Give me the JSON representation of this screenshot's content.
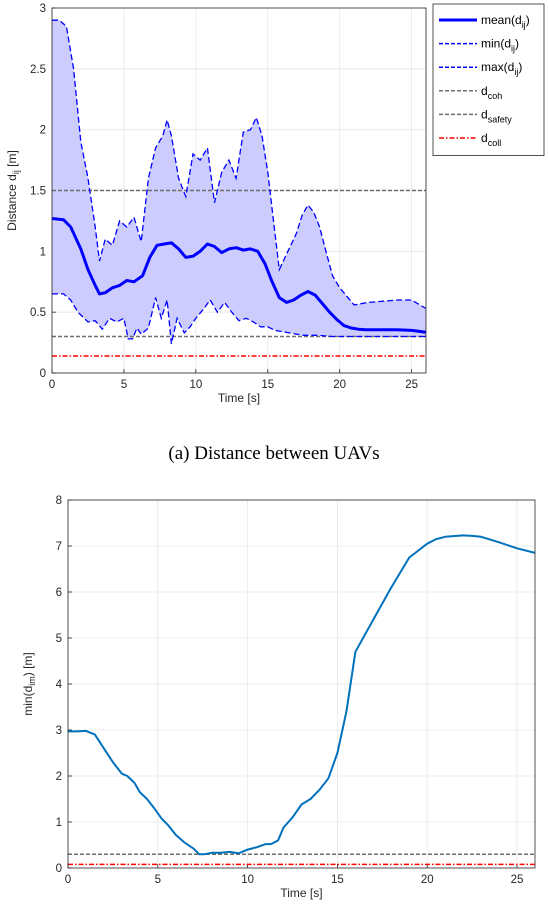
{
  "chart_data": [
    {
      "type": "line",
      "caption": "(a) Distance between UAVs",
      "xlabel": "Time [s]",
      "ylabel": {
        "main": "Distance d",
        "sub": "ij",
        "unit": " [m]"
      },
      "xlim": [
        0,
        26
      ],
      "ylim": [
        0,
        3
      ],
      "xticks": [
        "0",
        "5",
        "10",
        "15",
        "20",
        "25"
      ],
      "yticks": [
        "0",
        "0.5",
        "1",
        "1.5",
        "2",
        "2.5",
        "3"
      ],
      "grid": true,
      "legend_position": "top-right",
      "colors": {
        "mean": "#0000ff",
        "band": "#ccccff",
        "coh": "#6e6e6e",
        "safety": "#6e6e6e",
        "coll": "#ff0000"
      },
      "legend": [
        {
          "label": "mean(d",
          "sub": "ij",
          "close": ")",
          "style": "solid-bold",
          "color": "#0000ff"
        },
        {
          "label": "min(d",
          "sub": "ij",
          "close": ")",
          "style": "dashed",
          "color": "#0000ff"
        },
        {
          "label": "max(d",
          "sub": "ij",
          "close": ")",
          "style": "dashed",
          "color": "#0000ff"
        },
        {
          "label": "d",
          "sub": "coh",
          "close": "",
          "style": "dashed",
          "color": "#6e6e6e"
        },
        {
          "label": "d",
          "sub": "safety",
          "close": "",
          "style": "dashed",
          "color": "#6e6e6e"
        },
        {
          "label": "d",
          "sub": "coll",
          "close": "",
          "style": "dashdot",
          "color": "#ff0000"
        }
      ],
      "hlines": {
        "d_coh": 1.5,
        "d_safety": 0.3,
        "d_coll": 0.14
      },
      "series": [
        {
          "name": "mean(d_ij)",
          "x": [
            0,
            0.8,
            1.3,
            2,
            2.5,
            3,
            3.3,
            3.7,
            4.2,
            4.7,
            5.2,
            5.7,
            6.3,
            6.8,
            7.3,
            7.8,
            8.3,
            8.8,
            9.3,
            9.8,
            10.3,
            10.8,
            11.3,
            11.8,
            12.3,
            12.8,
            13.3,
            13.8,
            14.3,
            14.8,
            15.3,
            15.8,
            16.3,
            16.8,
            17.3,
            17.8,
            18.3,
            18.8,
            19.3,
            19.8,
            20.3,
            20.8,
            21.3,
            21.8,
            22.3,
            23,
            24,
            25,
            26
          ],
          "y": [
            1.27,
            1.26,
            1.2,
            1.02,
            0.85,
            0.72,
            0.65,
            0.66,
            0.7,
            0.72,
            0.76,
            0.75,
            0.8,
            0.95,
            1.05,
            1.06,
            1.07,
            1.02,
            0.95,
            0.96,
            1.0,
            1.06,
            1.04,
            0.99,
            1.02,
            1.03,
            1.01,
            1.02,
            1.0,
            0.9,
            0.75,
            0.62,
            0.58,
            0.6,
            0.64,
            0.67,
            0.64,
            0.57,
            0.5,
            0.44,
            0.39,
            0.37,
            0.36,
            0.355,
            0.355,
            0.355,
            0.355,
            0.35,
            0.335
          ]
        },
        {
          "name": "min(d_ij)",
          "x": [
            0,
            0.8,
            1.3,
            1.8,
            2.5,
            3,
            3.5,
            4,
            4.5,
            5,
            5.3,
            5.6,
            5.9,
            6.2,
            6.7,
            7.2,
            7.6,
            8,
            8.3,
            8.7,
            9.2,
            9.6,
            10,
            10.5,
            11,
            11.5,
            12,
            12.5,
            13,
            13.5,
            14,
            14.5,
            15,
            15.5,
            16,
            16.5,
            17,
            17.5,
            18,
            18.5,
            19,
            19.5,
            20,
            20.5,
            21,
            22,
            23,
            24,
            25,
            26
          ],
          "y": [
            0.65,
            0.65,
            0.6,
            0.5,
            0.42,
            0.43,
            0.36,
            0.45,
            0.42,
            0.45,
            0.28,
            0.28,
            0.37,
            0.32,
            0.37,
            0.62,
            0.45,
            0.6,
            0.24,
            0.45,
            0.33,
            0.38,
            0.45,
            0.52,
            0.6,
            0.5,
            0.58,
            0.5,
            0.43,
            0.45,
            0.42,
            0.38,
            0.38,
            0.35,
            0.34,
            0.33,
            0.32,
            0.31,
            0.31,
            0.31,
            0.305,
            0.3,
            0.3,
            0.3,
            0.3,
            0.3,
            0.3,
            0.3,
            0.3,
            0.3
          ]
        },
        {
          "name": "max(d_ij)",
          "x": [
            0,
            0.5,
            1,
            1.5,
            2,
            2.5,
            3,
            3.3,
            3.7,
            4.2,
            4.7,
            5.2,
            5.7,
            6.2,
            6.7,
            7.2,
            7.7,
            8,
            8.3,
            8.8,
            9.3,
            9.8,
            10.3,
            10.8,
            11.3,
            11.8,
            12.3,
            12.8,
            13.3,
            13.8,
            14.2,
            14.6,
            15,
            15.4,
            15.8,
            16.2,
            16.6,
            17,
            17.4,
            17.8,
            18.2,
            18.6,
            19,
            19.5,
            20,
            20.5,
            21,
            22,
            23,
            24,
            25,
            26
          ],
          "y": [
            2.9,
            2.9,
            2.85,
            2.5,
            1.9,
            1.6,
            1.2,
            0.92,
            1.1,
            1.05,
            1.25,
            1.2,
            1.28,
            1.08,
            1.6,
            1.85,
            1.95,
            2.08,
            1.95,
            1.6,
            1.45,
            1.8,
            1.75,
            1.85,
            1.4,
            1.65,
            1.75,
            1.6,
            1.98,
            2.0,
            2.1,
            1.95,
            1.65,
            1.25,
            0.85,
            0.95,
            1.05,
            1.15,
            1.3,
            1.38,
            1.32,
            1.2,
            1.02,
            0.8,
            0.7,
            0.63,
            0.56,
            0.58,
            0.59,
            0.6,
            0.6,
            0.53
          ]
        }
      ]
    },
    {
      "type": "line",
      "xlabel": "Time [s]",
      "ylabel": {
        "main": "min(d",
        "sub": "im",
        "unit": ") [m]"
      },
      "xlim": [
        0,
        26
      ],
      "ylim": [
        0,
        8
      ],
      "xticks": [
        "0",
        "5",
        "10",
        "15",
        "20",
        "25"
      ],
      "yticks": [
        "0",
        "1",
        "2",
        "3",
        "4",
        "5",
        "6",
        "7",
        "8"
      ],
      "grid": true,
      "colors": {
        "line": "#0072bd",
        "safety": "#6e6e6e",
        "coll": "#ff0000"
      },
      "hlines": {
        "d_safety": 0.3,
        "d_coll": 0.08
      },
      "series": [
        {
          "name": "min(d_im)",
          "x": [
            0,
            0.5,
            1,
            1.5,
            2,
            2.5,
            3,
            3.3,
            3.7,
            4,
            4.4,
            4.8,
            5.2,
            5.6,
            6,
            6.5,
            7,
            7.3,
            7.6,
            8,
            8.5,
            9,
            9.5,
            10,
            10.5,
            11,
            11.3,
            11.7,
            12,
            12.5,
            13,
            13.5,
            14,
            14.5,
            15,
            15.5,
            16,
            17,
            18,
            19,
            20,
            20.5,
            21,
            22,
            22.5,
            23,
            24,
            25,
            26
          ],
          "y": [
            2.97,
            2.97,
            2.98,
            2.9,
            2.6,
            2.3,
            2.05,
            2.0,
            1.85,
            1.65,
            1.5,
            1.3,
            1.08,
            0.92,
            0.72,
            0.55,
            0.42,
            0.3,
            0.3,
            0.33,
            0.33,
            0.35,
            0.32,
            0.4,
            0.45,
            0.52,
            0.52,
            0.6,
            0.88,
            1.1,
            1.38,
            1.5,
            1.7,
            1.95,
            2.5,
            3.4,
            4.7,
            5.4,
            6.1,
            6.75,
            7.05,
            7.15,
            7.2,
            7.23,
            7.22,
            7.2,
            7.08,
            6.95,
            6.85
          ]
        }
      ]
    }
  ]
}
